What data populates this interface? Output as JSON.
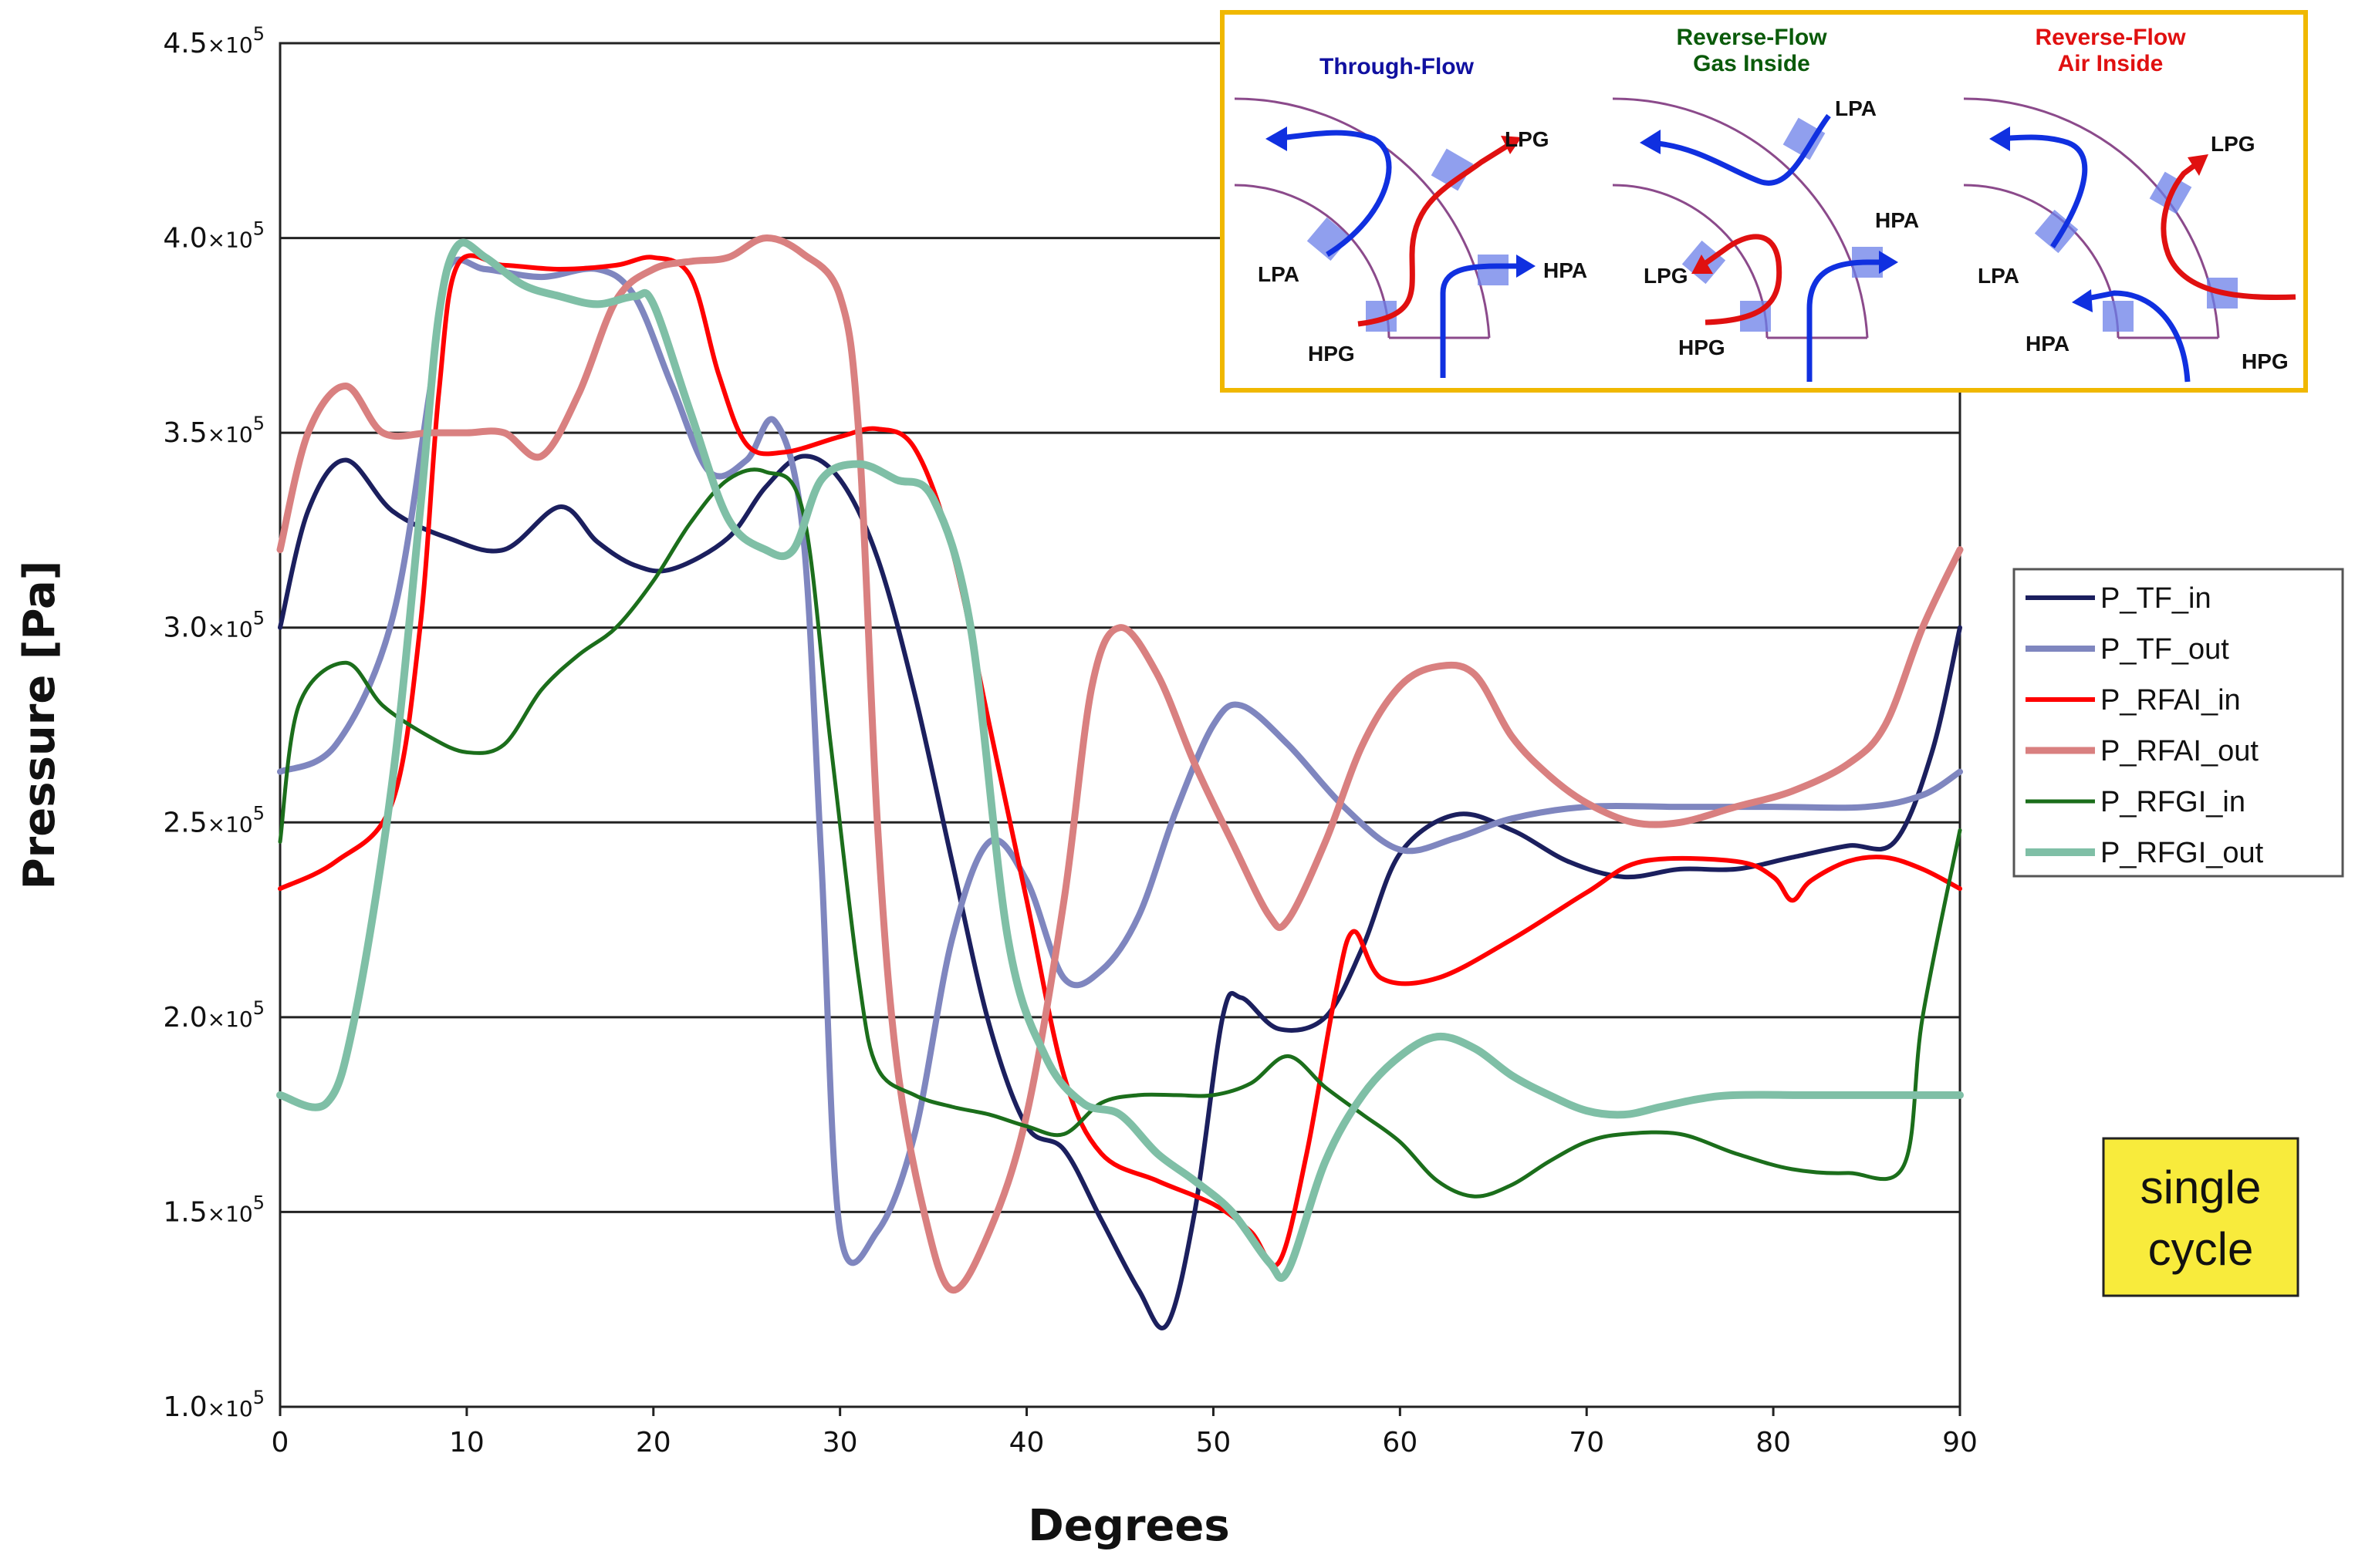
{
  "chart_data": {
    "type": "line",
    "title": "",
    "xlabel": "Degrees",
    "ylabel": "Pressure [Pa]",
    "xlim": [
      0,
      90
    ],
    "ylim": [
      100000,
      450000
    ],
    "x_ticks": [
      "0",
      "10",
      "20",
      "30",
      "40",
      "50",
      "60",
      "70",
      "80",
      "90"
    ],
    "y_ticks": [
      {
        "value": 100000,
        "mantissa": "1.0",
        "exp": "5"
      },
      {
        "value": 150000,
        "mantissa": "1.5",
        "exp": "5"
      },
      {
        "value": 200000,
        "mantissa": "2.0",
        "exp": "5"
      },
      {
        "value": 250000,
        "mantissa": "2.5",
        "exp": "5"
      },
      {
        "value": 300000,
        "mantissa": "3.0",
        "exp": "5"
      },
      {
        "value": 350000,
        "mantissa": "3.5",
        "exp": "5"
      },
      {
        "value": 400000,
        "mantissa": "4.0",
        "exp": "5"
      },
      {
        "value": 450000,
        "mantissa": "4.5",
        "exp": "5"
      }
    ],
    "y_tick_times": "×10",
    "grid": "horizontal",
    "legend_position": "right",
    "series": [
      {
        "name": "P_TF_in",
        "color": "#1b1f5e",
        "points": [
          [
            0,
            300000
          ],
          [
            1.5,
            330000
          ],
          [
            3.5,
            343000
          ],
          [
            6,
            330000
          ],
          [
            9,
            323000
          ],
          [
            12,
            320000
          ],
          [
            15,
            331000
          ],
          [
            17,
            322000
          ],
          [
            19,
            316000
          ],
          [
            21,
            315000
          ],
          [
            24,
            323000
          ],
          [
            26,
            336000
          ],
          [
            28,
            344000
          ],
          [
            30,
            338000
          ],
          [
            32,
            318000
          ],
          [
            34,
            283000
          ],
          [
            36,
            240000
          ],
          [
            38,
            198000
          ],
          [
            40,
            172000
          ],
          [
            42,
            166000
          ],
          [
            44,
            148000
          ],
          [
            46,
            130000
          ],
          [
            47.5,
            121000
          ],
          [
            49,
            150000
          ],
          [
            50.5,
            200000
          ],
          [
            51.5,
            205000
          ],
          [
            53.5,
            197000
          ],
          [
            56,
            200000
          ],
          [
            58,
            218000
          ],
          [
            60,
            242000
          ],
          [
            63,
            252000
          ],
          [
            66,
            248000
          ],
          [
            69,
            240000
          ],
          [
            72,
            236000
          ],
          [
            75,
            238000
          ],
          [
            78,
            238000
          ],
          [
            81,
            241000
          ],
          [
            84,
            244000
          ],
          [
            86.5,
            245000
          ],
          [
            88.5,
            268000
          ],
          [
            90,
            300000
          ]
        ]
      },
      {
        "name": "P_TF_out",
        "color": "#7f86bf",
        "points": [
          [
            0,
            263000
          ],
          [
            3,
            270000
          ],
          [
            6,
            302000
          ],
          [
            8,
            360000
          ],
          [
            9,
            392000
          ],
          [
            11,
            392000
          ],
          [
            14,
            390000
          ],
          [
            17,
            392000
          ],
          [
            19,
            385000
          ],
          [
            21,
            362000
          ],
          [
            23,
            340000
          ],
          [
            25,
            343000
          ],
          [
            26.5,
            353000
          ],
          [
            28,
            325000
          ],
          [
            29,
            240000
          ],
          [
            30,
            145000
          ],
          [
            32,
            145000
          ],
          [
            34,
            170000
          ],
          [
            36,
            220000
          ],
          [
            38,
            245000
          ],
          [
            40,
            235000
          ],
          [
            42,
            210000
          ],
          [
            44,
            212000
          ],
          [
            46,
            226000
          ],
          [
            48,
            253000
          ],
          [
            50,
            275000
          ],
          [
            51.5,
            280000
          ],
          [
            54,
            270000
          ],
          [
            57,
            254000
          ],
          [
            60,
            243000
          ],
          [
            63,
            246000
          ],
          [
            66,
            251000
          ],
          [
            70,
            254000
          ],
          [
            75,
            254000
          ],
          [
            80,
            254000
          ],
          [
            85,
            254000
          ],
          [
            88,
            257000
          ],
          [
            90,
            263000
          ]
        ]
      },
      {
        "name": "P_RFAI_in",
        "color": "#ff0000",
        "points": [
          [
            0,
            233000
          ],
          [
            3,
            240000
          ],
          [
            6,
            255000
          ],
          [
            7.5,
            300000
          ],
          [
            8.5,
            360000
          ],
          [
            9.5,
            393000
          ],
          [
            12,
            393000
          ],
          [
            15,
            392000
          ],
          [
            18,
            393000
          ],
          [
            20,
            395000
          ],
          [
            22,
            390000
          ],
          [
            23.5,
            365000
          ],
          [
            25,
            347000
          ],
          [
            27,
            345000
          ],
          [
            30,
            349000
          ],
          [
            32,
            351000
          ],
          [
            34,
            346000
          ],
          [
            36,
            320000
          ],
          [
            38,
            275000
          ],
          [
            40,
            230000
          ],
          [
            42,
            185000
          ],
          [
            44,
            165000
          ],
          [
            47,
            158000
          ],
          [
            50,
            152000
          ],
          [
            52,
            145000
          ],
          [
            53.5,
            137000
          ],
          [
            55,
            165000
          ],
          [
            56.5,
            205000
          ],
          [
            57.5,
            222000
          ],
          [
            59,
            210000
          ],
          [
            62,
            210000
          ],
          [
            66,
            220000
          ],
          [
            70,
            232000
          ],
          [
            73,
            240000
          ],
          [
            78,
            240000
          ],
          [
            80,
            236000
          ],
          [
            81,
            230000
          ],
          [
            82,
            235000
          ],
          [
            84,
            240000
          ],
          [
            86,
            241000
          ],
          [
            88,
            238000
          ],
          [
            90,
            233000
          ]
        ]
      },
      {
        "name": "P_RFAI_out",
        "color": "#d98080",
        "points": [
          [
            0,
            320000
          ],
          [
            1.5,
            350000
          ],
          [
            3.5,
            362000
          ],
          [
            5.5,
            350000
          ],
          [
            8,
            350000
          ],
          [
            10,
            350000
          ],
          [
            12,
            350000
          ],
          [
            14,
            344000
          ],
          [
            16,
            360000
          ],
          [
            18,
            384000
          ],
          [
            20,
            392000
          ],
          [
            22,
            394000
          ],
          [
            24,
            395000
          ],
          [
            26,
            400000
          ],
          [
            28,
            396000
          ],
          [
            30,
            385000
          ],
          [
            31,
            350000
          ],
          [
            32,
            250000
          ],
          [
            33,
            190000
          ],
          [
            34.5,
            150000
          ],
          [
            36,
            130000
          ],
          [
            38,
            145000
          ],
          [
            40,
            175000
          ],
          [
            42,
            230000
          ],
          [
            43.5,
            285000
          ],
          [
            45,
            300000
          ],
          [
            47,
            288000
          ],
          [
            49,
            265000
          ],
          [
            51,
            245000
          ],
          [
            53,
            226000
          ],
          [
            54,
            225000
          ],
          [
            56,
            245000
          ],
          [
            58,
            270000
          ],
          [
            60,
            285000
          ],
          [
            62,
            290000
          ],
          [
            64,
            288000
          ],
          [
            66,
            272000
          ],
          [
            68,
            262000
          ],
          [
            70,
            255000
          ],
          [
            72.5,
            250000
          ],
          [
            75,
            250000
          ],
          [
            78,
            254000
          ],
          [
            81,
            258000
          ],
          [
            84,
            265000
          ],
          [
            86,
            275000
          ],
          [
            88,
            300000
          ],
          [
            90,
            320000
          ]
        ]
      },
      {
        "name": "P_RFGI_in",
        "color": "#1b6e1b",
        "points": [
          [
            0,
            245000
          ],
          [
            1,
            280000
          ],
          [
            3.5,
            291000
          ],
          [
            5.5,
            280000
          ],
          [
            8,
            272000
          ],
          [
            10,
            268000
          ],
          [
            12,
            270000
          ],
          [
            14,
            284000
          ],
          [
            16,
            293000
          ],
          [
            18,
            300000
          ],
          [
            20,
            312000
          ],
          [
            22,
            327000
          ],
          [
            24,
            338000
          ],
          [
            26,
            340000
          ],
          [
            28,
            330000
          ],
          [
            29.5,
            270000
          ],
          [
            31,
            210000
          ],
          [
            32,
            187000
          ],
          [
            34,
            180000
          ],
          [
            36,
            177000
          ],
          [
            38,
            175000
          ],
          [
            40,
            172000
          ],
          [
            42,
            170000
          ],
          [
            44,
            178000
          ],
          [
            46,
            180000
          ],
          [
            48,
            180000
          ],
          [
            50,
            180000
          ],
          [
            52,
            183000
          ],
          [
            54,
            190000
          ],
          [
            56,
            182000
          ],
          [
            58,
            175000
          ],
          [
            60,
            168000
          ],
          [
            62,
            158000
          ],
          [
            64,
            154000
          ],
          [
            66,
            157000
          ],
          [
            68,
            163000
          ],
          [
            70,
            168000
          ],
          [
            72,
            170000
          ],
          [
            75,
            170000
          ],
          [
            78,
            165000
          ],
          [
            81,
            161000
          ],
          [
            84,
            160000
          ],
          [
            87,
            162000
          ],
          [
            88,
            200000
          ],
          [
            90,
            248000
          ]
        ]
      },
      {
        "name": "P_RFGI_out",
        "color": "#7fbfa6",
        "points": [
          [
            0,
            180000
          ],
          [
            2.5,
            178000
          ],
          [
            4,
            200000
          ],
          [
            6,
            260000
          ],
          [
            7.5,
            330000
          ],
          [
            8.5,
            380000
          ],
          [
            9.5,
            398000
          ],
          [
            11,
            395000
          ],
          [
            13,
            388000
          ],
          [
            15,
            385000
          ],
          [
            17,
            383000
          ],
          [
            19,
            385000
          ],
          [
            20,
            383000
          ],
          [
            22,
            355000
          ],
          [
            24,
            328000
          ],
          [
            26,
            320000
          ],
          [
            27.5,
            320000
          ],
          [
            29,
            338000
          ],
          [
            31,
            342000
          ],
          [
            33,
            338000
          ],
          [
            35,
            333000
          ],
          [
            37,
            300000
          ],
          [
            39,
            220000
          ],
          [
            41,
            190000
          ],
          [
            43,
            178000
          ],
          [
            45,
            175000
          ],
          [
            47,
            165000
          ],
          [
            49,
            158000
          ],
          [
            51,
            150000
          ],
          [
            53,
            137000
          ],
          [
            54,
            135000
          ],
          [
            56,
            163000
          ],
          [
            58,
            180000
          ],
          [
            60,
            190000
          ],
          [
            62,
            195000
          ],
          [
            64,
            192000
          ],
          [
            66,
            185000
          ],
          [
            68,
            180000
          ],
          [
            70,
            176000
          ],
          [
            72,
            175000
          ],
          [
            74,
            177000
          ],
          [
            76,
            179000
          ],
          [
            78,
            180000
          ],
          [
            82,
            180000
          ],
          [
            86,
            180000
          ],
          [
            90,
            180000
          ]
        ]
      }
    ],
    "annotation": [
      "single",
      "cycle"
    ],
    "inset": {
      "panels": [
        {
          "title": [
            "Through-Flow"
          ],
          "title_color": "#1010a0",
          "labels": [
            "LPG",
            "LPA",
            "HPA",
            "HPG"
          ]
        },
        {
          "title": [
            "Reverse-Flow",
            "Gas Inside"
          ],
          "title_color": "#0a5a0a",
          "labels": [
            "LPA",
            "HPA",
            "LPG",
            "HPG"
          ]
        },
        {
          "title": [
            "Reverse-Flow",
            "Air Inside"
          ],
          "title_color": "#e01010",
          "labels": [
            "LPG",
            "LPA",
            "HPA",
            "HPG"
          ]
        }
      ]
    }
  }
}
